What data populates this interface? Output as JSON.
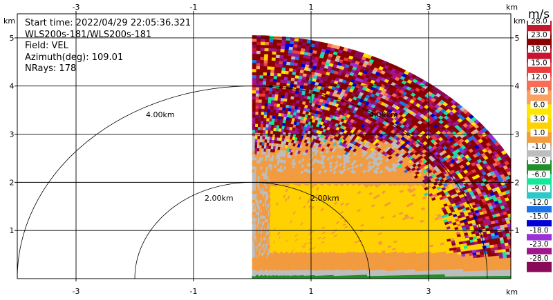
{
  "info": {
    "start_time": "Start time: 2022/04/29 22:05:36.321",
    "instrument": "WLS200s-181/WLS200s-181",
    "field": "Field: VEL",
    "azimuth": "Azimuth(deg): 109.01",
    "nrays": "NRays: 178"
  },
  "chart_data": {
    "type": "heatmap",
    "projection": "polar-sector (range-height)",
    "xlabel_unit": "km",
    "ylabel_unit": "km",
    "xlim": [
      -4.0,
      4.4
    ],
    "ylim": [
      0,
      5.5
    ],
    "x_ticks": [
      {
        "value": -3,
        "label": "-3"
      },
      {
        "value": -1,
        "label": "-1"
      },
      {
        "value": 1,
        "label": "1"
      },
      {
        "value": 3,
        "label": "3"
      }
    ],
    "y_ticks": [
      {
        "value": 1,
        "label": "1"
      },
      {
        "value": 2,
        "label": "2"
      },
      {
        "value": 3,
        "label": "3"
      },
      {
        "value": 4,
        "label": "4"
      },
      {
        "value": 5,
        "label": "5"
      }
    ],
    "grid": true,
    "sector": {
      "x0": 0.0,
      "max_range_km": 5.05,
      "elevation_deg": [
        0,
        90
      ]
    },
    "range_rings": [
      {
        "range_km": 2.0,
        "label": "2.00km"
      },
      {
        "range_km": 4.0,
        "label": "4.00km"
      }
    ],
    "observed_pattern": [
      {
        "height_km": [
          0.0,
          0.07
        ],
        "class": "-3.0"
      },
      {
        "height_km": [
          0.07,
          0.18
        ],
        "class": "-1.0"
      },
      {
        "height_km": [
          0.18,
          0.45
        ],
        "class": "3.0"
      },
      {
        "height_km": [
          0.45,
          2.2
        ],
        "class": "6.0"
      },
      {
        "height_km": [
          2.2,
          3.1
        ],
        "class": "3.0"
      },
      {
        "height_km": [
          3.1,
          5.05
        ],
        "class": "noise"
      }
    ],
    "colorbar": {
      "unit": "m/s",
      "levels": [
        {
          "label": "28.0",
          "color": "#c01a2e"
        },
        {
          "label": "23.0",
          "color": "#8b0000"
        },
        {
          "label": "18.0",
          "color": "#c71432"
        },
        {
          "label": "15.0",
          "color": "#ec3c3c"
        },
        {
          "label": "12.0",
          "color": "#f76e55"
        },
        {
          "label": "9.0",
          "color": "#fca060"
        },
        {
          "label": "6.0",
          "color": "#ffe600"
        },
        {
          "label": "3.0",
          "color": "#ffd100"
        },
        {
          "label": "1.0",
          "color": "#f29b3f"
        },
        {
          "label": "-1.0",
          "color": "#bdbdbd"
        },
        {
          "label": "-3.0",
          "color": "#1f8f2a"
        },
        {
          "label": "-6.0",
          "color": "#14e89a"
        },
        {
          "label": "-9.0",
          "color": "#2ec8c8"
        },
        {
          "label": "-12.0",
          "color": "#1e74e6"
        },
        {
          "label": "-15.0",
          "color": "#0000d6"
        },
        {
          "label": "-18.0",
          "color": "#9b30d9"
        },
        {
          "label": "-23.0",
          "color": "#a0148c"
        },
        {
          "label": "-28.0",
          "color": "#8a0a5a"
        }
      ]
    }
  }
}
